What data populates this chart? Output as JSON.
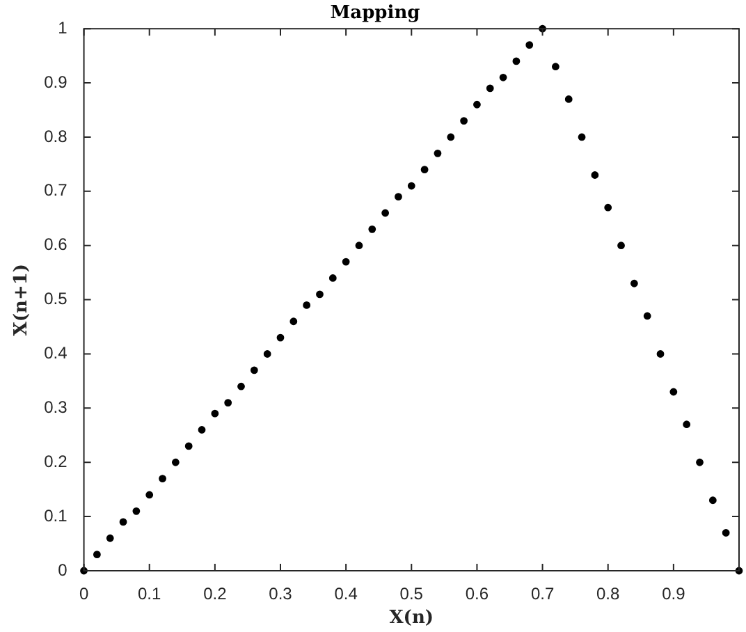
{
  "chart_data": {
    "type": "scatter",
    "title": "Mapping",
    "xlabel": "X(n)",
    "ylabel": "X(n+1)",
    "x": [
      0,
      0.02,
      0.04,
      0.06,
      0.08,
      0.1,
      0.12,
      0.14,
      0.16,
      0.18,
      0.2,
      0.22,
      0.24,
      0.26,
      0.28,
      0.3,
      0.32,
      0.34,
      0.36,
      0.38,
      0.4,
      0.42,
      0.44,
      0.46,
      0.48,
      0.5,
      0.52,
      0.54,
      0.56,
      0.58,
      0.6,
      0.62,
      0.64,
      0.66,
      0.68,
      0.7,
      0.72,
      0.74,
      0.76,
      0.78,
      0.8,
      0.82,
      0.84,
      0.86,
      0.88,
      0.9,
      0.92,
      0.94,
      0.96,
      0.98,
      1
    ],
    "series": [
      {
        "color": "#000000",
        "values": [
          0,
          0.03,
          0.06,
          0.09,
          0.11,
          0.14,
          0.17,
          0.2,
          0.23,
          0.26,
          0.29,
          0.31,
          0.34,
          0.37,
          0.4,
          0.43,
          0.46,
          0.49,
          0.51,
          0.54,
          0.57,
          0.6,
          0.63,
          0.66,
          0.69,
          0.71,
          0.74,
          0.77,
          0.8,
          0.83,
          0.86,
          0.89,
          0.91,
          0.94,
          0.97,
          1,
          0.93,
          0.87,
          0.8,
          0.73,
          0.67,
          0.6,
          0.53,
          0.47,
          0.4,
          0.33,
          0.27,
          0.2,
          0.13,
          0.07,
          0
        ]
      }
    ],
    "marker": "circle",
    "legend": false,
    "xlim": [
      0,
      1
    ],
    "xticks": [
      0,
      0.1,
      0.2,
      0.3,
      0.4,
      0.5,
      0.6,
      0.7,
      0.8,
      0.9,
      {
        "value": 1,
        "label": null
      }
    ],
    "ylim": [
      0,
      1
    ],
    "yticks": [
      0,
      0.1,
      0.2,
      0.3,
      0.4,
      0.5,
      0.6,
      0.7,
      0.8,
      0.9,
      1
    ]
  }
}
